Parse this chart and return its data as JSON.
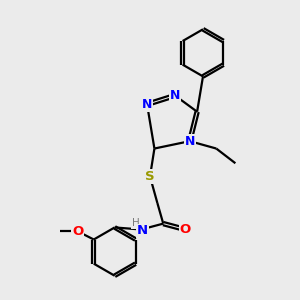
{
  "bg_color": "#ebebeb",
  "bond_color": "#000000",
  "N_color": "#0000ff",
  "O_color": "#ff0000",
  "S_color": "#999900",
  "H_color": "#7a7a7a",
  "line_width": 1.6,
  "figsize": [
    3.0,
    3.0
  ],
  "dpi": 100,
  "xlim": [
    0,
    10
  ],
  "ylim": [
    0,
    10
  ]
}
